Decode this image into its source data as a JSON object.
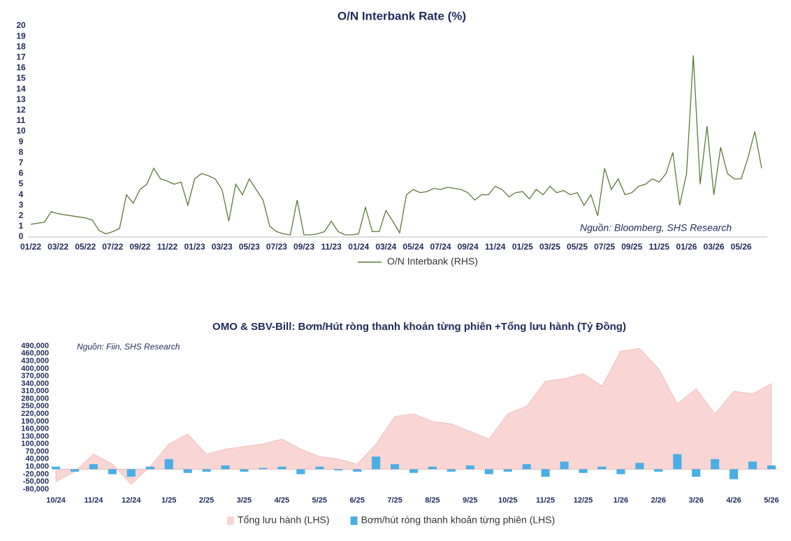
{
  "chart_data": [
    {
      "type": "line",
      "title": "O/N Interbank Rate (%)",
      "annotation": "Nguồn:  Bloomberg, SHS Research",
      "categories": [
        "01/22",
        null,
        null,
        null,
        "03/22",
        null,
        null,
        null,
        "05/22",
        null,
        null,
        null,
        "07/22",
        null,
        null,
        null,
        "09/22",
        null,
        null,
        null,
        "11/22",
        null,
        null,
        null,
        "01/23",
        null,
        null,
        null,
        "03/23",
        null,
        null,
        null,
        "05/23",
        null,
        null,
        null,
        "07/23",
        null,
        null,
        null,
        "09/23",
        null,
        null,
        null,
        "11/23",
        null,
        null,
        null,
        "01/24",
        null,
        null,
        null,
        "03/24",
        null,
        null,
        null,
        "05/24",
        null,
        null,
        null,
        "07/24",
        null,
        null,
        null,
        "09/24",
        null,
        null,
        null,
        "11/24",
        null,
        null,
        null,
        "01/25",
        null,
        null,
        null,
        "03/25",
        null,
        null,
        null,
        "05/25",
        null,
        null,
        null,
        "07/25",
        null,
        null,
        null,
        "09/25",
        null,
        null,
        null,
        "11/25",
        null,
        null,
        null,
        "01/26",
        null,
        null,
        null,
        "03/26",
        null,
        null,
        null,
        "05/26",
        null,
        null,
        null
      ],
      "series": [
        {
          "name": "O/N Interbank (RHS)",
          "color": "#5b7a3a",
          "values": [
            1.2,
            1.3,
            1.4,
            2.4,
            2.2,
            2.1,
            2.0,
            1.9,
            1.8,
            1.6,
            0.6,
            0.3,
            0.5,
            0.8,
            4.0,
            3.2,
            4.5,
            5.0,
            6.5,
            5.5,
            5.3,
            5.0,
            5.2,
            3.0,
            5.5,
            6.0,
            5.8,
            5.5,
            4.5,
            1.5,
            5.0,
            4.0,
            5.5,
            4.5,
            3.5,
            1.0,
            0.5,
            0.3,
            0.2,
            3.5,
            0.2,
            0.2,
            0.3,
            0.5,
            1.5,
            0.5,
            0.2,
            0.2,
            0.3,
            2.8,
            0.5,
            0.5,
            2.5,
            1.5,
            0.4,
            4.0,
            4.5,
            4.2,
            4.3,
            4.6,
            4.5,
            4.7,
            4.6,
            4.5,
            4.2,
            3.5,
            4.0,
            4.0,
            4.8,
            4.5,
            3.8,
            4.2,
            4.3,
            3.6,
            4.5,
            4.0,
            4.8,
            4.2,
            4.4,
            4.0,
            4.2,
            3.0,
            4.0,
            2.0,
            6.5,
            4.5,
            5.5,
            4.0,
            4.2,
            4.8,
            5.0,
            5.5,
            5.2,
            6.0,
            8.0,
            3.0,
            6.0,
            17.2,
            5.0,
            10.5,
            4.0,
            8.5,
            6.0,
            5.5,
            5.5,
            7.5,
            10.0,
            6.5
          ]
        }
      ],
      "ylim": [
        0,
        20
      ],
      "yticks": [
        0,
        1,
        2,
        3,
        4,
        5,
        6,
        7,
        8,
        9,
        10,
        11,
        12,
        13,
        14,
        15,
        16,
        17,
        18,
        19,
        20
      ]
    },
    {
      "type": "combo",
      "title": "OMO & SBV-Bill: Bơm/Hút ròng thanh khoản từng phiên +Tổng lưu hành (Tỷ Đồng)",
      "annotation": "Nguồn:  Fiin, SHS Research",
      "categories": [
        "10/24",
        null,
        "11/24",
        null,
        "12/24",
        null,
        "1/25",
        null,
        "2/25",
        null,
        "3/25",
        null,
        "4/25",
        null,
        "5/25",
        null,
        "6/25",
        null,
        "7/25",
        null,
        "8/25",
        null,
        "9/25",
        null,
        "10/25",
        null,
        "11/25",
        null,
        "12/25",
        null,
        "1/26",
        null,
        "2/26",
        null,
        "3/26",
        null,
        "4/26",
        null,
        "5/26"
      ],
      "series": [
        {
          "name": "Tổng lưu hành (LHS)",
          "type": "area",
          "color": "#f9d6d4",
          "values": [
            -50000,
            -10000,
            60000,
            20000,
            -60000,
            10000,
            100000,
            140000,
            60000,
            80000,
            90000,
            100000,
            120000,
            80000,
            50000,
            40000,
            20000,
            100000,
            210000,
            220000,
            190000,
            180000,
            150000,
            120000,
            220000,
            250000,
            350000,
            360000,
            380000,
            330000,
            470000,
            480000,
            400000,
            260000,
            320000,
            220000,
            310000,
            300000,
            340000
          ]
        },
        {
          "name": "Bơm/hút ròng thanh khoản từng phiên (LHS)",
          "type": "bar",
          "color": "#4aaee5",
          "values": [
            10000,
            -10000,
            20000,
            -20000,
            -30000,
            10000,
            40000,
            -15000,
            -10000,
            15000,
            -10000,
            5000,
            10000,
            -20000,
            10000,
            -5000,
            -10000,
            50000,
            20000,
            -15000,
            10000,
            -10000,
            15000,
            -20000,
            -10000,
            20000,
            -30000,
            30000,
            -15000,
            10000,
            -20000,
            25000,
            -10000,
            60000,
            -30000,
            40000,
            -40000,
            30000,
            15000
          ]
        }
      ],
      "ylim": [
        -80000,
        490000
      ],
      "yticks": [
        {
          "value": -80000,
          "label": "-80,000"
        },
        {
          "value": -50000,
          "label": "-50,000"
        },
        {
          "value": -20000,
          "label": "-20,000"
        },
        {
          "value": 10000,
          "label": "10,000"
        },
        {
          "value": 40000,
          "label": "40,000"
        },
        {
          "value": 70000,
          "label": "70,000"
        },
        {
          "value": 100000,
          "label": "100,000"
        },
        {
          "value": 130000,
          "label": "130,000"
        },
        {
          "value": 160000,
          "label": "160,000"
        },
        {
          "value": 190000,
          "label": "190,000"
        },
        {
          "value": 220000,
          "label": "220,000"
        },
        {
          "value": 250000,
          "label": "250,000"
        },
        {
          "value": 280000,
          "label": "280,000"
        },
        {
          "value": 310000,
          "label": "310,000"
        },
        {
          "value": 340000,
          "label": "340,000"
        },
        {
          "value": 370000,
          "label": "370,000"
        },
        {
          "value": 400000,
          "label": "400,000"
        },
        {
          "value": 430000,
          "label": "430,000"
        },
        {
          "value": 460000,
          "label": "460,000"
        },
        {
          "value": 490000,
          "label": "490,000"
        }
      ]
    }
  ]
}
